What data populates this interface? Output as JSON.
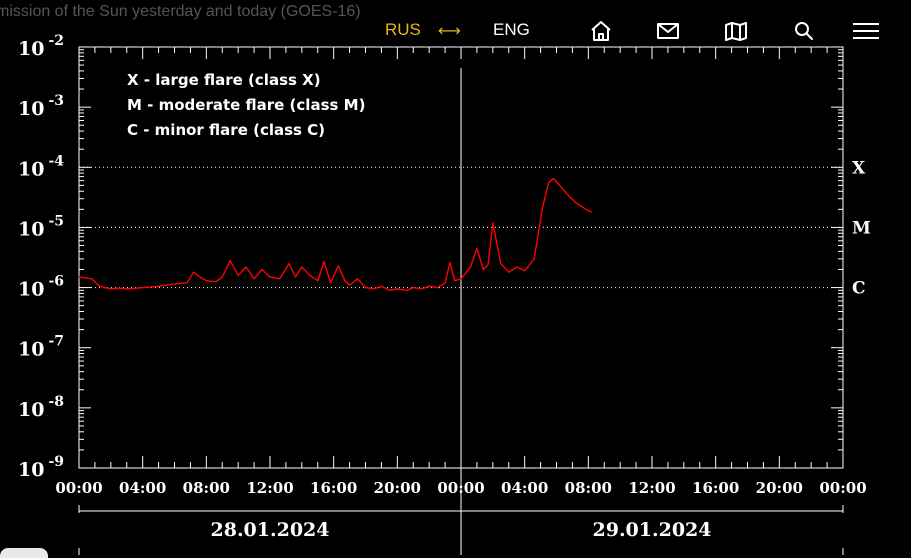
{
  "header": {
    "caption": "mission of the Sun yesterday and today (GOES-16)",
    "lang_rus": "RUS",
    "lang_arrow": "⟷",
    "lang_eng": "ENG",
    "icons": [
      "home-icon",
      "mail-icon",
      "map-icon",
      "search-icon",
      "menu-icon"
    ]
  },
  "colors": {
    "accent": "#e6b422",
    "flux_line": "#ff0000",
    "background": "#000000",
    "axes": "#ffffff"
  },
  "chart_data": {
    "type": "line",
    "title": "",
    "xlabel": "",
    "ylabel": "",
    "y_scale": "log",
    "y_tick_exponents": [
      -2,
      -3,
      -4,
      -5,
      -6,
      -7,
      -8,
      -9
    ],
    "y_tick_base": "10",
    "x_tick_labels": [
      "00:00",
      "04:00",
      "08:00",
      "12:00",
      "16:00",
      "20:00",
      "00:00",
      "04:00",
      "08:00",
      "12:00",
      "16:00",
      "20:00",
      "00:00"
    ],
    "x_range_hours": [
      0,
      48
    ],
    "dates": [
      "28.01.2024",
      "29.01.2024"
    ],
    "class_levels": [
      {
        "label": "X",
        "flux": 0.0001
      },
      {
        "label": "M",
        "flux": 1e-05
      },
      {
        "label": "C",
        "flux": 1e-06
      }
    ],
    "legend": [
      "X - large flare (class X)",
      "M - moderate flare (class M)",
      "C - minor flare (class C)"
    ],
    "legend_position": "top-left",
    "grid": "dotted at class levels",
    "series": [
      {
        "color": "#ff0000",
        "x_hours": [
          0,
          0.8,
          1.2,
          1.6,
          2.0,
          2.5,
          3.0,
          3.5,
          4.0,
          5.0,
          6.0,
          6.8,
          7.2,
          7.6,
          8.0,
          8.6,
          9.0,
          9.5,
          10.0,
          10.5,
          11.0,
          11.5,
          12.0,
          12.6,
          13.2,
          13.6,
          14.0,
          14.5,
          15.0,
          15.4,
          15.8,
          16.3,
          16.7,
          17.0,
          17.5,
          18.0,
          18.5,
          19.0,
          19.5,
          20.0,
          20.6,
          21.0,
          21.5,
          22.0,
          22.5,
          23.0,
          23.3,
          23.6,
          24.0,
          24.6,
          25.0,
          25.4,
          25.7,
          26.0,
          26.5,
          27.0,
          27.5,
          28.0,
          28.6,
          29.1,
          29.5,
          29.8,
          30.2,
          30.7,
          31.2,
          31.6,
          32.0,
          32.2
        ],
        "y_flux": [
          1.5e-06,
          1.4e-06,
          1.1e-06,
          1e-06,
          9.5e-07,
          9.8e-07,
          9.5e-07,
          9.7e-07,
          1e-06,
          1.05e-06,
          1.15e-06,
          1.2e-06,
          1.8e-06,
          1.5e-06,
          1.3e-06,
          1.25e-06,
          1.5e-06,
          2.8e-06,
          1.6e-06,
          2.2e-06,
          1.4e-06,
          2e-06,
          1.5e-06,
          1.4e-06,
          2.5e-06,
          1.5e-06,
          2.2e-06,
          1.6e-06,
          1.3e-06,
          2.7e-06,
          1.2e-06,
          2.3e-06,
          1.3e-06,
          1.1e-06,
          1.4e-06,
          1e-06,
          9.5e-07,
          1.05e-06,
          9e-07,
          9.5e-07,
          9e-07,
          1e-06,
          9.5e-07,
          1.05e-06,
          1e-06,
          1.2e-06,
          2.6e-06,
          1.3e-06,
          1.4e-06,
          2.2e-06,
          4.5e-06,
          2e-06,
          2.4e-06,
          1.2e-05,
          2.5e-06,
          1.8e-06,
          2.2e-06,
          1.9e-06,
          3e-06,
          2e-05,
          5.5e-05,
          6.5e-05,
          5e-05,
          3.5e-05,
          2.6e-05,
          2.2e-05,
          1.9e-05,
          1.8e-05
        ]
      }
    ]
  }
}
